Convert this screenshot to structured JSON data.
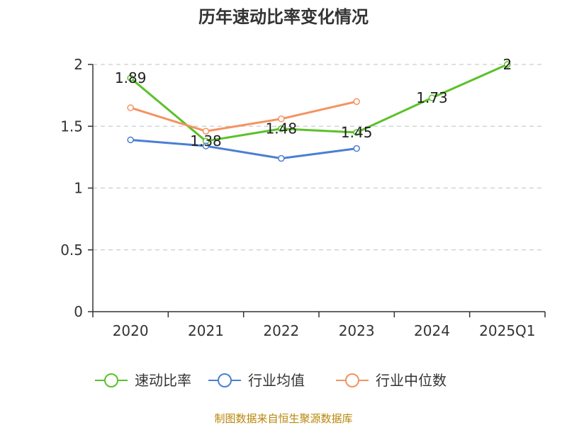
{
  "chart_data": {
    "type": "line",
    "title": "历年速动比率变化情况",
    "categories": [
      "2020",
      "2021",
      "2022",
      "2023",
      "2024",
      "2025Q1"
    ],
    "y_ticks": [
      "0",
      "0.5",
      "1",
      "1.5",
      "2"
    ],
    "ylim": [
      0,
      2
    ],
    "grid": true,
    "legend_position": "bottom",
    "series": [
      {
        "name": "速动比率",
        "color": "#5bc12a",
        "values": [
          1.89,
          1.38,
          1.48,
          1.45,
          1.73,
          2
        ],
        "labels": [
          "1.89",
          "1.38",
          "1.48",
          "1.45",
          "1.73",
          "2"
        ]
      },
      {
        "name": "行业均值",
        "color": "#4a7fd4",
        "values": [
          1.39,
          1.34,
          1.24,
          1.32,
          null,
          null
        ]
      },
      {
        "name": "行业中位数",
        "color": "#f59260",
        "values": [
          1.65,
          1.46,
          1.56,
          1.7,
          null,
          null
        ]
      }
    ],
    "source": "制图数据来自恒生聚源数据库"
  }
}
